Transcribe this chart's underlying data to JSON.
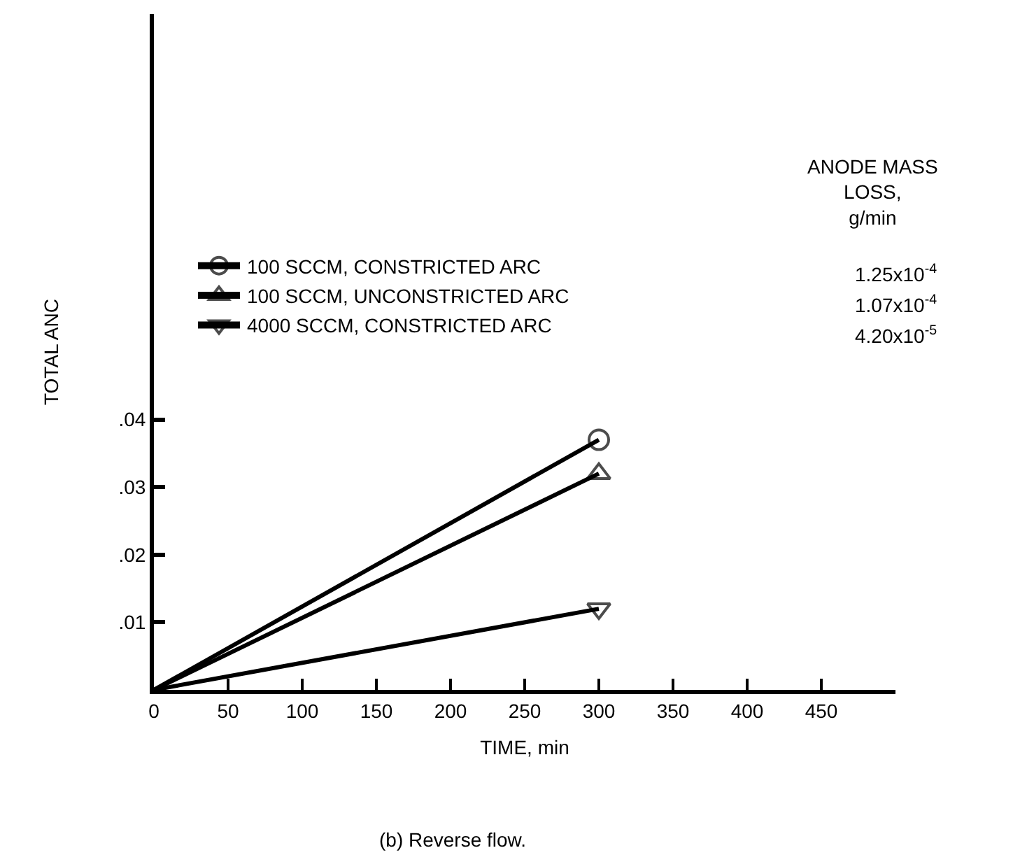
{
  "chart_data": {
    "type": "line",
    "ylabel": "TOTAL ANC",
    "xlabel": "TIME, min",
    "xlim": [
      0,
      500
    ],
    "xticks": [
      0,
      50,
      100,
      150,
      200,
      250,
      300,
      350,
      400,
      450
    ],
    "ylim": [
      0,
      0.1
    ],
    "yticks": [
      {
        "value": 0.01,
        "label": ".01"
      },
      {
        "value": 0.02,
        "label": ".02"
      },
      {
        "value": 0.03,
        "label": ".03"
      },
      {
        "value": 0.04,
        "label": ".04"
      }
    ],
    "x": [
      0,
      300
    ],
    "series": [
      {
        "name": "100 SCCM, CONSTRICTED ARC",
        "color": "#000000",
        "marker": "circle",
        "values": [
          0,
          0.037
        ]
      },
      {
        "name": "100 SCCM, UNCONSTRICTED ARC",
        "color": "#000000",
        "marker": "triangle",
        "values": [
          0,
          0.032
        ]
      },
      {
        "name": "4000 SCCM, CONSTRICTED ARC",
        "color": "#000000",
        "marker": "triangle-down",
        "values": [
          0,
          0.012
        ]
      }
    ],
    "legend": "top left",
    "line_style": "solid",
    "annotations": [
      "ANODE MASS\nLOSS,\ng/min",
      "1.25x10$^{-4}$",
      "1.07x10$^{-4}$",
      "4.20x10$^{-5}$",
      "(b) Reverse flow."
    ]
  }
}
